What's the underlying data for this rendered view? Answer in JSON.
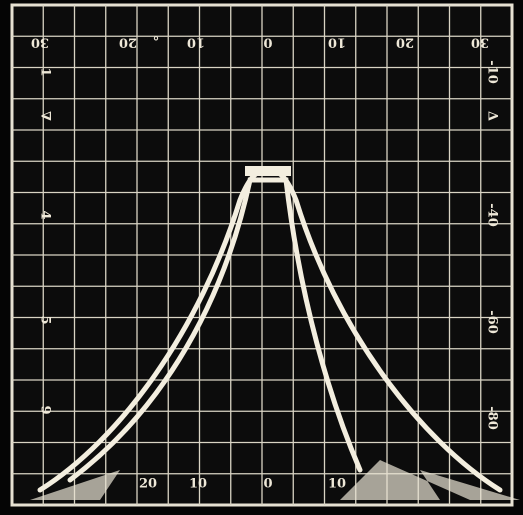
{
  "top_labels": [
    "30",
    "20",
    "°",
    "10",
    "0",
    "10",
    "20",
    "30"
  ],
  "left_labels": [
    "1",
    "∇",
    "4",
    "5",
    "9"
  ],
  "right_labels": [
    "-10",
    "Δ",
    "-40",
    "-60",
    "-80"
  ],
  "bottom_labels": [
    "20",
    "10",
    "0",
    "10"
  ]
}
